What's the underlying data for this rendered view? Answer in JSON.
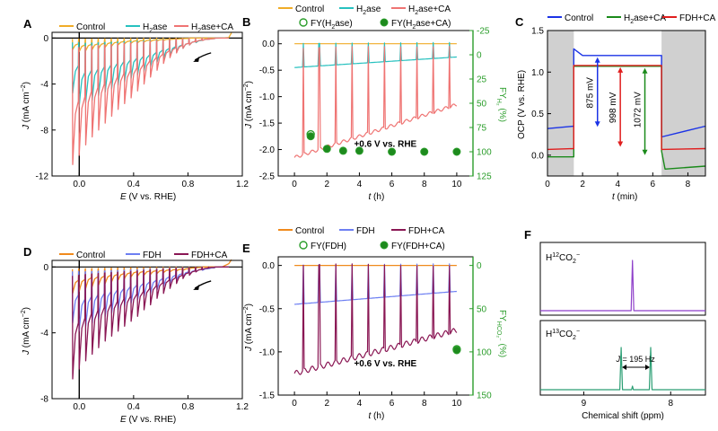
{
  "colors": {
    "control": "#f0ac28",
    "h2ase": "#27c1bf",
    "h2ase_ca": "#ef7473",
    "fy_green": "#2a9d2a",
    "fy_green_dark": "#1e8a1e",
    "ocp_control": "#1b33e6",
    "ocp_h2ase_ca": "#1a8a1a",
    "ocp_fdh_ca": "#e01e1e",
    "control2": "#f08a1c",
    "fdh": "#6d7ff2",
    "fdh_ca": "#8a1754",
    "nmr": "#8e3fc9",
    "nmr2": "#2a9e73",
    "shade": "#d0d0d0"
  },
  "chart_data": [
    {
      "id": "A",
      "type": "line",
      "panel_label": "A",
      "legend": [
        "Control",
        "H₂ase",
        "H₂ase+CA"
      ],
      "xlabel_italic": "E",
      "xlabel_rest": " (V vs. RHE)",
      "ylabel_italic": "J",
      "ylabel_rest": " (mA cm⁻²)",
      "xlim": [
        -0.2,
        1.2
      ],
      "ylim": [
        -12,
        0.5
      ],
      "xticks": [
        "0.0",
        "0.4",
        "0.8",
        "1.2"
      ],
      "xtick_values": [
        0.0,
        0.4,
        0.8,
        1.2
      ],
      "yticks": [
        "0",
        "-4",
        "-8",
        "-12"
      ],
      "ytick_values": [
        0,
        -4,
        -8,
        -12
      ],
      "series": [
        {
          "name": "Control",
          "end_current": 0.05,
          "peaks": [
            -1.0,
            -1.2,
            -1.1,
            -1.0,
            -0.9,
            -0.8,
            -0.7,
            -0.6,
            -0.5,
            -0.45,
            -0.4,
            -0.35,
            -0.3,
            -0.25,
            -0.2,
            -0.15,
            -0.1,
            -0.05,
            0,
            0,
            0,
            0
          ]
        },
        {
          "name": "H₂ase",
          "end_current": 0.0,
          "peaks": [
            -4.8,
            -6.0,
            -5.6,
            -5.4,
            -5.0,
            -4.7,
            -4.4,
            -4.1,
            -3.8,
            -3.5,
            -3.2,
            -2.9,
            -2.5,
            -2.1,
            -1.8,
            -1.5,
            -1.2,
            -0.9,
            -0.6,
            -0.4,
            -0.2,
            -0.1
          ]
        },
        {
          "name": "H₂ase+CA",
          "end_current": 0.0,
          "peaks": [
            -11.0,
            -10.2,
            -9.3,
            -8.6,
            -8.0,
            -7.4,
            -6.8,
            -6.2,
            -5.7,
            -5.2,
            -4.6,
            -4.0,
            -3.4,
            -2.8,
            -2.2,
            -1.7,
            -1.3,
            -0.9,
            -0.6,
            -0.35,
            -0.2,
            -0.1
          ]
        }
      ]
    },
    {
      "id": "B",
      "type": "line",
      "panel_label": "B",
      "legend": [
        "Control",
        "H₂ase",
        "H₂ase+CA",
        "FY(H₂ase)",
        "FY(H₂ase+CA)"
      ],
      "annotation": "+0.6 V vs. RHE",
      "xlabel_italic": "t",
      "xlabel_rest": " (h)",
      "ylabel_italic": "J",
      "ylabel_rest": " (mA cm⁻²)",
      "y2label": "FY",
      "y2label_sub": "H₂",
      "y2label_rest": " (%)",
      "xlim": [
        -1,
        11
      ],
      "ylim": [
        -2.5,
        0.25
      ],
      "y2lim": [
        125,
        -25
      ],
      "xticks": [
        "0",
        "2",
        "4",
        "6",
        "8",
        "10"
      ],
      "xtick_values": [
        0,
        2,
        4,
        6,
        8,
        10
      ],
      "yticks": [
        "0.0",
        "-0.5",
        "-1.0",
        "-1.5",
        "-2.0",
        "-2.5"
      ],
      "ytick_values": [
        0,
        -0.5,
        -1.0,
        -1.5,
        -2.0,
        -2.5
      ],
      "y2ticks": [
        "-25",
        "0",
        "25",
        "50",
        "75",
        "100",
        "125"
      ],
      "y2tick_values": [
        -25,
        0,
        25,
        50,
        75,
        100,
        125
      ],
      "series": [
        {
          "name": "Control",
          "t": [
            0,
            10
          ],
          "j": [
            0.0,
            0.0
          ]
        },
        {
          "name": "H₂ase",
          "t": [
            0,
            10
          ],
          "j": [
            -0.45,
            -0.25
          ]
        },
        {
          "name": "H₂ase+CA",
          "t": [
            0,
            1,
            2,
            3,
            4,
            5,
            6,
            7,
            8,
            9,
            10
          ],
          "j": [
            -2.15,
            -2.05,
            -1.95,
            -1.85,
            -1.75,
            -1.65,
            -1.55,
            -1.45,
            -1.35,
            -1.25,
            -1.15
          ]
        }
      ],
      "fy_h2ase": {
        "t": [
          1
        ],
        "fy": [
          82
        ]
      },
      "fy_h2ase_ca": {
        "t": [
          1,
          2,
          3,
          4,
          6,
          8,
          10
        ],
        "fy": [
          84,
          97,
          99,
          99,
          100,
          100,
          100
        ]
      }
    },
    {
      "id": "C",
      "type": "line",
      "panel_label": "C",
      "legend": [
        "Control",
        "H₂ase+CA",
        "FDH+CA"
      ],
      "xlabel_italic": "t",
      "xlabel_rest": " (min)",
      "ylabel": "OCP (V vs. RHE)",
      "xlim": [
        0,
        9
      ],
      "ylim": [
        -0.25,
        1.5
      ],
      "xticks": [
        "0",
        "2",
        "4",
        "6",
        "8"
      ],
      "xtick_values": [
        0,
        2,
        4,
        6,
        8
      ],
      "yticks": [
        "0.0",
        "0.5",
        "1.0",
        "1.5"
      ],
      "ytick_values": [
        0,
        0.5,
        1.0,
        1.5
      ],
      "shaded_intervals": [
        [
          0,
          1.5
        ],
        [
          6.5,
          9
        ]
      ],
      "series": [
        {
          "name": "Control",
          "t": [
            0,
            1.5,
            1.5,
            2.0,
            6.5,
            6.5,
            9
          ],
          "v": [
            0.32,
            0.35,
            1.28,
            1.2,
            1.2,
            0.22,
            0.35
          ]
        },
        {
          "name": "H₂ase+CA",
          "t": [
            0,
            1.5,
            1.5,
            6.5,
            6.5,
            6.7,
            9
          ],
          "v": [
            -0.02,
            -0.02,
            1.07,
            1.07,
            0.05,
            -0.15,
            -0.15
          ]
        },
        {
          "name": "FDH+CA",
          "t": [
            0,
            1.5,
            1.5,
            6.5,
            6.5,
            9
          ],
          "v": [
            0.07,
            0.08,
            1.08,
            1.08,
            0.07,
            0.08
          ]
        }
      ],
      "annotations": [
        {
          "label": "875 mV",
          "t": 2.85
        },
        {
          "label": "998 mV",
          "t": 4.15
        },
        {
          "label": "1072 mV",
          "t": 5.55
        }
      ]
    },
    {
      "id": "D",
      "type": "line",
      "panel_label": "D",
      "legend": [
        "Control",
        "FDH",
        "FDH+CA"
      ],
      "xlabel_italic": "E",
      "xlabel_rest": " (V vs. RHE)",
      "ylabel_italic": "J",
      "ylabel_rest": " (mA cm⁻²)",
      "xlim": [
        -0.2,
        1.2
      ],
      "ylim": [
        -8,
        0.4
      ],
      "xticks": [
        "0.0",
        "0.4",
        "0.8",
        "1.2"
      ],
      "xtick_values": [
        0.0,
        0.4,
        0.8,
        1.2
      ],
      "yticks": [
        "0",
        "-4",
        "-8"
      ],
      "ytick_values": [
        0,
        -4,
        -8
      ],
      "series": [
        {
          "name": "Control",
          "end_current": 0.2,
          "peaks": [
            -1.6,
            -1.5,
            -1.3,
            -1.2,
            -1.1,
            -1.0,
            -0.9,
            -0.8,
            -0.7,
            -0.6,
            -0.55,
            -0.5,
            -0.45,
            -0.4,
            -0.35,
            -0.3,
            -0.25,
            -0.2,
            -0.1,
            -0.05,
            0,
            0
          ]
        },
        {
          "name": "FDH",
          "end_current": 0.0,
          "peaks": [
            -3.4,
            -3.9,
            -3.6,
            -3.4,
            -3.2,
            -3.0,
            -2.8,
            -2.6,
            -2.4,
            -2.2,
            -2.0,
            -1.8,
            -1.6,
            -1.4,
            -1.2,
            -1.0,
            -0.8,
            -0.6,
            -0.45,
            -0.3,
            -0.2,
            -0.1
          ]
        },
        {
          "name": "FDH+CA",
          "end_current": 0.0,
          "peaks": [
            -6.8,
            -6.2,
            -5.7,
            -5.3,
            -4.9,
            -4.5,
            -4.2,
            -3.9,
            -3.6,
            -3.3,
            -3.0,
            -2.6,
            -2.3,
            -1.9,
            -1.6,
            -1.3,
            -1.0,
            -0.7,
            -0.5,
            -0.3,
            -0.15,
            -0.05
          ]
        }
      ]
    },
    {
      "id": "E",
      "type": "line",
      "panel_label": "E",
      "legend": [
        "Control",
        "FDH",
        "FDH+CA",
        "FY(FDH)",
        "FY(FDH+CA)"
      ],
      "annotation": "+0.6 V vs. RHE",
      "xlabel_italic": "t",
      "xlabel_rest": " (h)",
      "ylabel_italic": "J",
      "ylabel_rest": " (mA cm⁻²)",
      "y2label": "FY",
      "y2label_sub": "HCO₂⁻",
      "y2label_rest": " (%)",
      "xlim": [
        -1,
        11
      ],
      "ylim": [
        -1.5,
        0.1
      ],
      "y2lim": [
        150,
        -10
      ],
      "xticks": [
        "0",
        "2",
        "4",
        "6",
        "8",
        "10"
      ],
      "xtick_values": [
        0,
        2,
        4,
        6,
        8,
        10
      ],
      "yticks": [
        "0.0",
        "-0.5",
        "-1.0",
        "-1.5"
      ],
      "ytick_values": [
        0,
        -0.5,
        -1.0,
        -1.5
      ],
      "y2ticks": [
        "0",
        "50",
        "100",
        "150"
      ],
      "y2tick_values": [
        0,
        50,
        100,
        150
      ],
      "series": [
        {
          "name": "Control",
          "t": [
            0,
            10
          ],
          "j": [
            0.0,
            0.0
          ]
        },
        {
          "name": "FDH",
          "t": [
            0,
            10
          ],
          "j": [
            -0.45,
            -0.3
          ]
        },
        {
          "name": "FDH+CA",
          "t": [
            0,
            1,
            2,
            3,
            4,
            5,
            6,
            7,
            8,
            9,
            10
          ],
          "j": [
            -1.25,
            -1.2,
            -1.15,
            -1.1,
            -1.05,
            -1.0,
            -0.95,
            -0.9,
            -0.85,
            -0.8,
            -0.75
          ]
        }
      ],
      "fy_fdh": {
        "t": [
          10
        ],
        "fy": [
          97
        ]
      },
      "fy_fdh_ca": {
        "t": [
          10
        ],
        "fy": [
          98
        ]
      }
    },
    {
      "id": "F",
      "type": "line",
      "panel_label": "F",
      "xlabel": "Chemical shift (ppm)",
      "xlim": [
        9.5,
        7.6
      ],
      "xticks": [
        "9",
        "8"
      ],
      "xtick_values": [
        9,
        8
      ],
      "spectra": [
        {
          "name": "H¹²CO₂⁻",
          "label_main": "H",
          "label_sup": "12",
          "label_tail": "CO",
          "label_sub": "2",
          "label_sup2": "−",
          "peaks_ppm": [
            8.44
          ]
        },
        {
          "name": "H¹³CO₂⁻",
          "label_main": "H",
          "label_sup": "13",
          "label_tail": "CO",
          "label_sub": "2",
          "label_sup2": "−",
          "peaks_ppm": [
            8.57,
            8.23,
            8.44
          ],
          "coupling_label": "J = 195 Hz"
        }
      ]
    }
  ]
}
